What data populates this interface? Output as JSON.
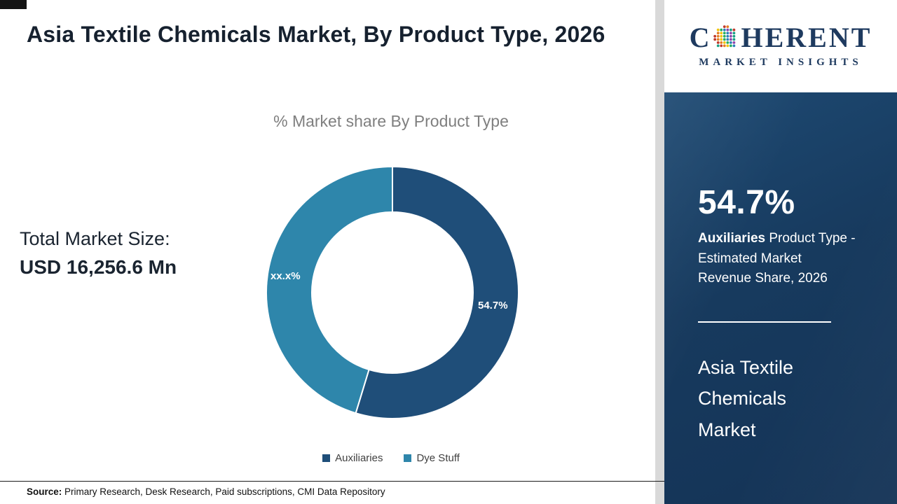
{
  "header": {
    "title": "Asia Textile Chemicals Market, By Product Type, 2026"
  },
  "logo": {
    "c": "C",
    "rest": "HERENT",
    "subtitle": "MARKET INSIGHTS"
  },
  "left_panel": {
    "label": "Total Market Size:",
    "value": "USD 16,256.6 Mn"
  },
  "chart_data": {
    "type": "donut",
    "title": "% Market share By Product Type",
    "categories": [
      "Auxiliaries",
      "Dye Stuff"
    ],
    "values": [
      54.7,
      45.3
    ],
    "labels": [
      "54.7%",
      "xx.x%"
    ],
    "colors": [
      "#1F4E79",
      "#2E86AB"
    ],
    "legend_position": "bottom",
    "inner_radius_ratio": 0.64
  },
  "sidebar": {
    "stat_value": "54.7%",
    "stat_bold": "Auxiliaries",
    "stat_rest": " Product Type - Estimated Market Revenue Share, 2026",
    "market_name": "Asia Textile Chemicals Market",
    "bg_color": "#17395E"
  },
  "footer": {
    "source_label": "Source:",
    "source_text": " Primary Research, Desk Research, Paid subscriptions, CMI Data Repository"
  }
}
